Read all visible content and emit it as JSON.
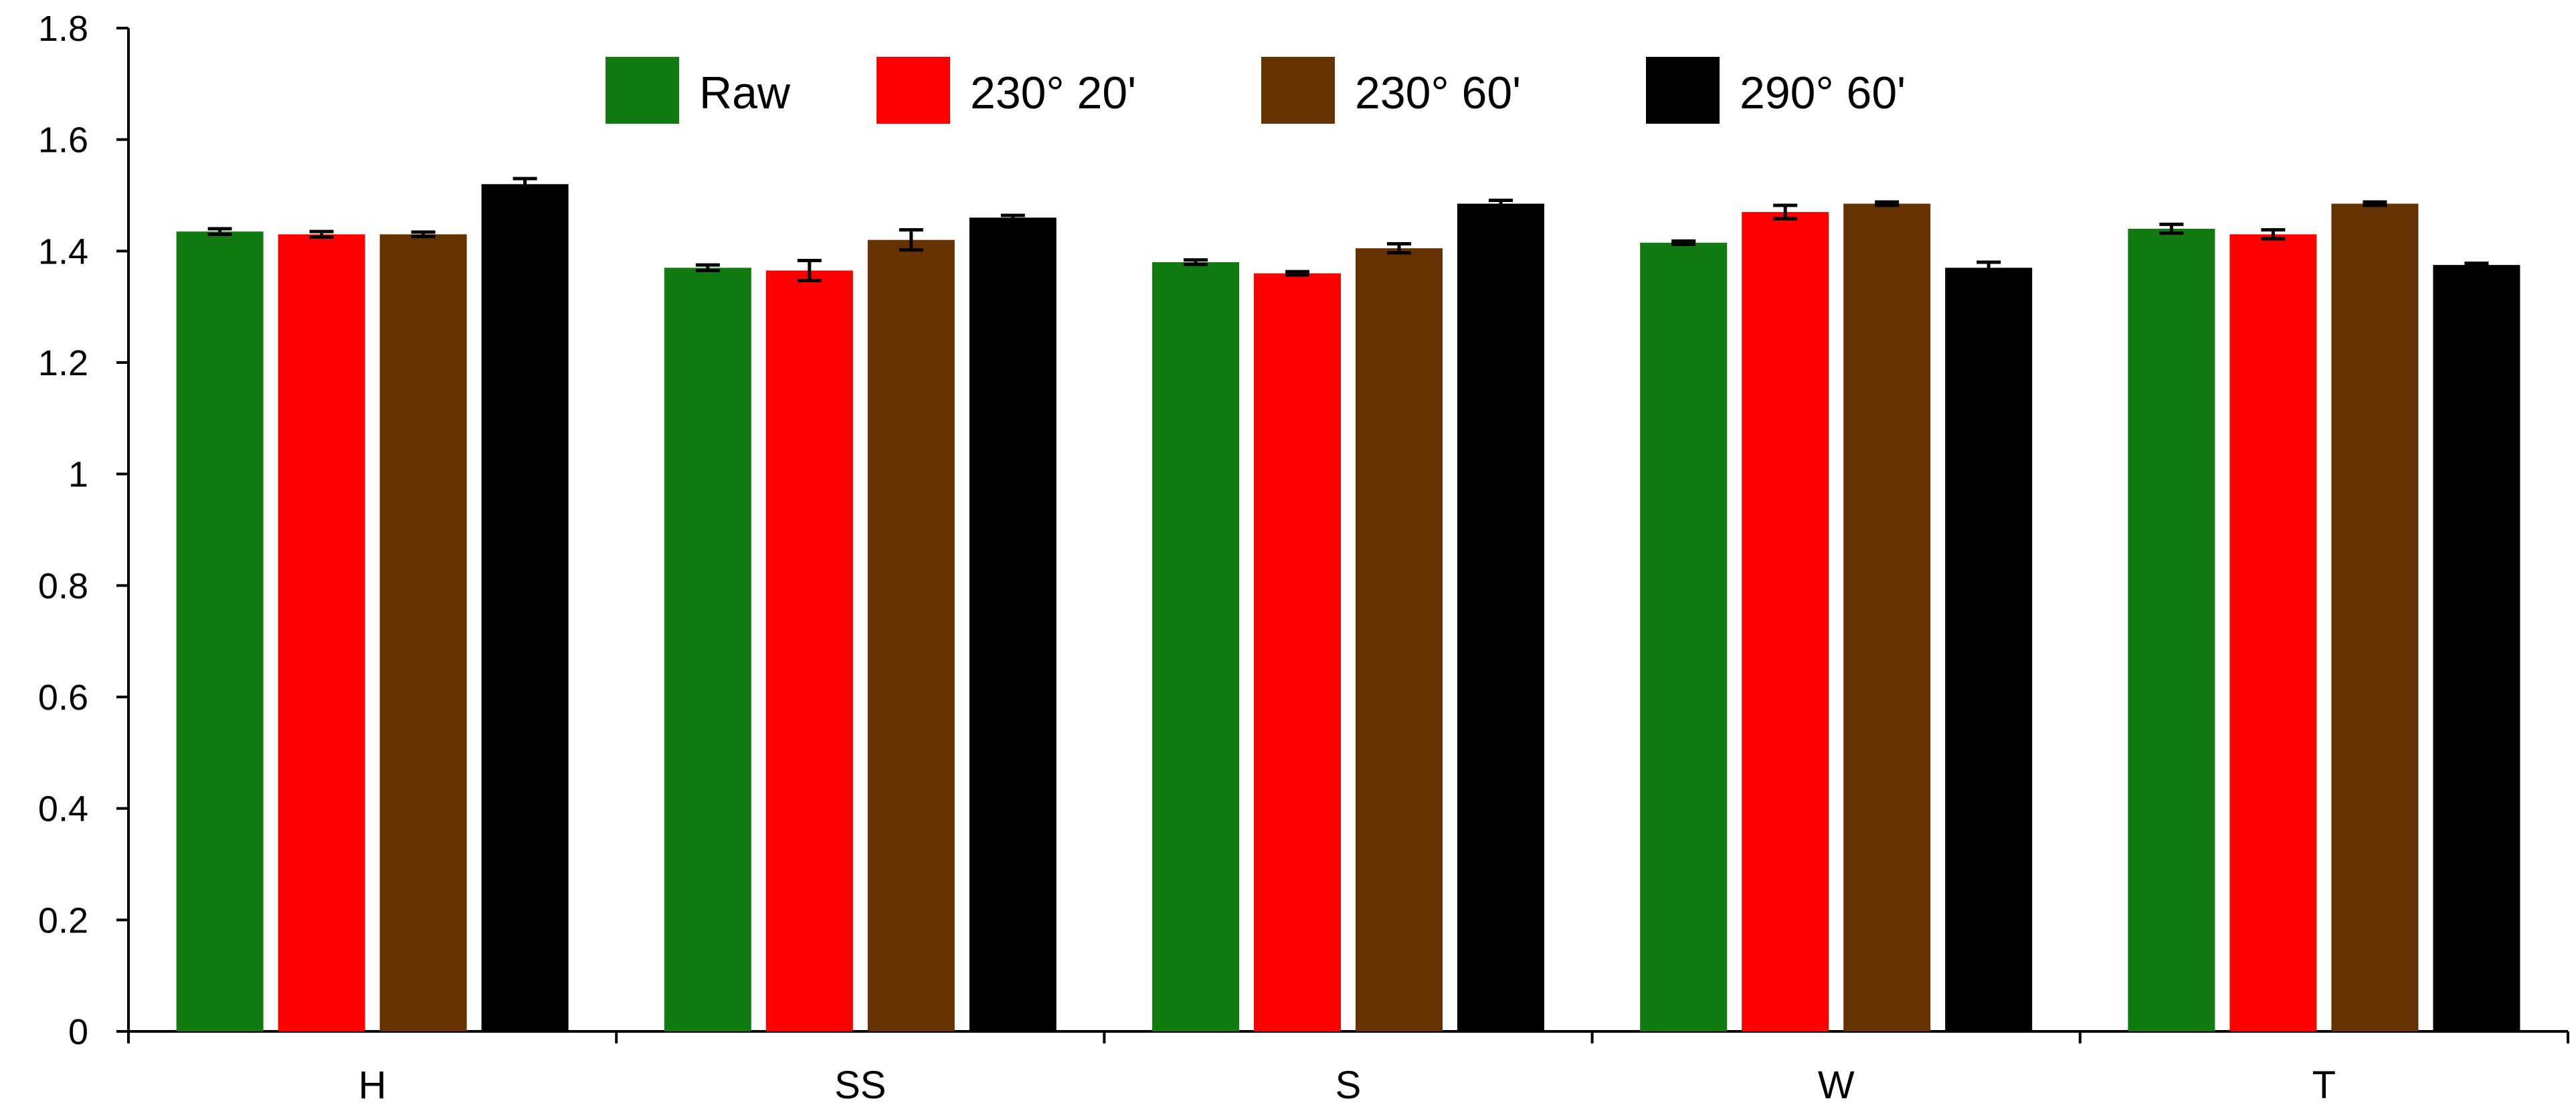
{
  "chart_data": {
    "type": "bar",
    "title": "",
    "xlabel": "",
    "ylabel": "",
    "ylim": [
      0,
      1.8
    ],
    "yticks": [
      0,
      0.2,
      0.4,
      0.6,
      0.8,
      1,
      1.2,
      1.4,
      1.6,
      1.8
    ],
    "ytick_labels": [
      "0",
      "0.2",
      "0.4",
      "0.6",
      "0.8",
      "1",
      "1.2",
      "1.4",
      "1.6",
      "1.8"
    ],
    "grid": false,
    "legend_position": "top-center",
    "categories": [
      "H",
      "SS",
      "S",
      "W",
      "T"
    ],
    "series": [
      {
        "name": "Raw",
        "color": "#117a11",
        "values": [
          1.435,
          1.37,
          1.38,
          1.415,
          1.44
        ],
        "errors": [
          0.005,
          0.005,
          0.004,
          0.003,
          0.008
        ]
      },
      {
        "name": "230° 20'",
        "color": "#ff0000",
        "values": [
          1.43,
          1.365,
          1.36,
          1.47,
          1.43
        ],
        "errors": [
          0.005,
          0.018,
          0.003,
          0.012,
          0.008
        ]
      },
      {
        "name": "230° 60'",
        "color": "#663300",
        "values": [
          1.43,
          1.42,
          1.405,
          1.485,
          1.485
        ],
        "errors": [
          0.004,
          0.018,
          0.008,
          0.003,
          0.003
        ]
      },
      {
        "name": "290° 60'",
        "color": "#000000",
        "values": [
          1.52,
          1.46,
          1.485,
          1.37,
          1.375
        ],
        "errors": [
          0.01,
          0.004,
          0.006,
          0.01,
          0.003
        ]
      }
    ]
  }
}
